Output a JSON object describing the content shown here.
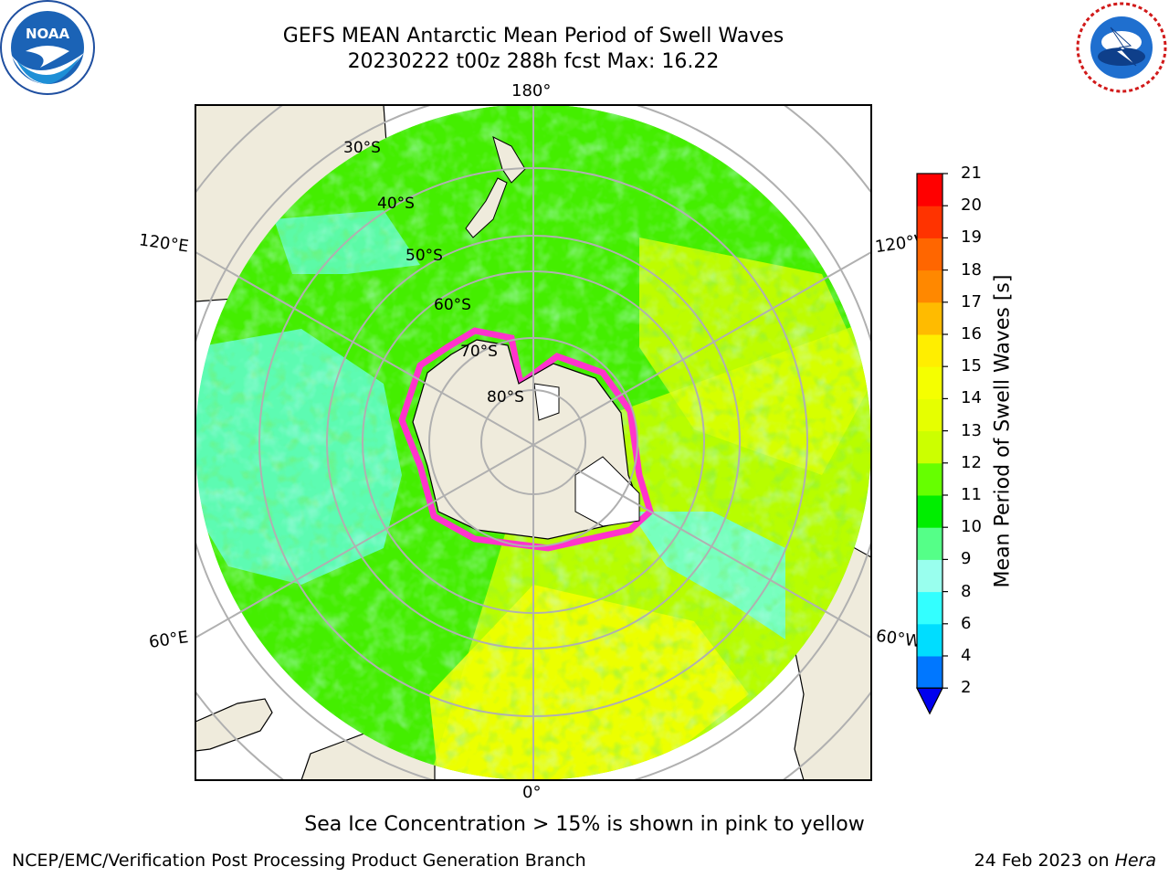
{
  "header": {
    "title_line1": "GEFS MEAN Antarctic Mean Period of Swell Waves",
    "title_line2": "20230222 t00z 288h fcst   Max: 16.22"
  },
  "logos": {
    "left": {
      "icon": "noaa-logo-icon",
      "text": "NOAA"
    },
    "right": {
      "icon": "nws-logo-icon",
      "text": "NATIONAL WEATHER SERVICE"
    }
  },
  "map": {
    "projection": "south-polar-stereographic",
    "longitude_labels": {
      "top": "180°",
      "bottom": "0°",
      "upper_left": "120°E",
      "upper_right": "120°W",
      "lower_left": "60°E",
      "lower_right": "60°W"
    },
    "latitude_labels": [
      "30°S",
      "40°S",
      "50°S",
      "60°S",
      "70°S",
      "80°S"
    ],
    "colors": {
      "land": "#efebdc",
      "ocean_dominant": "#44ee00",
      "graticule": "#b0b0b0"
    }
  },
  "colorbar": {
    "label": "Mean Period of Swell Waves [s]",
    "ticks": [
      "2",
      "4",
      "6",
      "8",
      "9",
      "10",
      "11",
      "12",
      "13",
      "14",
      "15",
      "16",
      "17",
      "18",
      "19",
      "20",
      "21"
    ],
    "levels": [
      {
        "from": 2,
        "to": 4,
        "color": "#0077ff"
      },
      {
        "from": 4,
        "to": 6,
        "color": "#00ddff"
      },
      {
        "from": 6,
        "to": 8,
        "color": "#33ffff"
      },
      {
        "from": 8,
        "to": 9,
        "color": "#99ffee"
      },
      {
        "from": 9,
        "to": 10,
        "color": "#55ff88"
      },
      {
        "from": 10,
        "to": 11,
        "color": "#00ee00"
      },
      {
        "from": 11,
        "to": 12,
        "color": "#66ff00"
      },
      {
        "from": 12,
        "to": 13,
        "color": "#ccff00"
      },
      {
        "from": 13,
        "to": 14,
        "color": "#e6ff00"
      },
      {
        "from": 14,
        "to": 15,
        "color": "#f5ff00"
      },
      {
        "from": 15,
        "to": 16,
        "color": "#ffee00"
      },
      {
        "from": 16,
        "to": 17,
        "color": "#ffbb00"
      },
      {
        "from": 17,
        "to": 18,
        "color": "#ff8800"
      },
      {
        "from": 18,
        "to": 19,
        "color": "#ff6600"
      },
      {
        "from": 19,
        "to": 20,
        "color": "#ff3300"
      },
      {
        "from": 20,
        "to": 21,
        "color": "#ff0000"
      }
    ],
    "under_color": "#0000ee"
  },
  "footer": {
    "subcaption": "Sea Ice Concentration > 15% is shown in pink to yellow",
    "credit_left": "NCEP/EMC/Verification Post Processing Product Generation Branch",
    "credit_date": "24 Feb 2023 on ",
    "credit_host": "Hera"
  }
}
